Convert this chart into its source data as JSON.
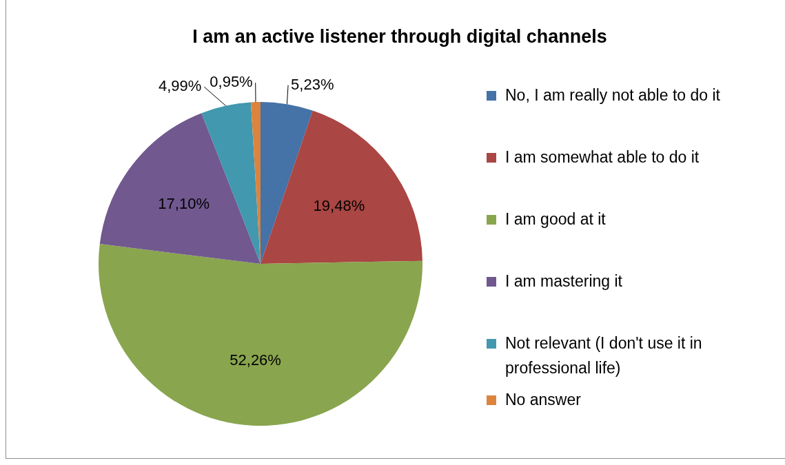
{
  "chart_data": {
    "type": "pie",
    "title": "I am an active listener through digital channels",
    "categories": [
      "No, I am really not able to do it",
      "I am somewhat able to do it",
      "I am good at it",
      "I am mastering it",
      "Not relevant (I don't use it in professional life)",
      "No answer"
    ],
    "values": [
      5.23,
      19.48,
      52.26,
      17.1,
      4.99,
      0.95
    ],
    "colors": [
      "#4572a7",
      "#aa4643",
      "#89a54e",
      "#71588f",
      "#4198af",
      "#db843d"
    ],
    "value_labels": [
      "5,23%",
      "19,48%",
      "52,26%",
      "17,10%",
      "4,99%",
      "0,95%"
    ],
    "legend": "right"
  }
}
